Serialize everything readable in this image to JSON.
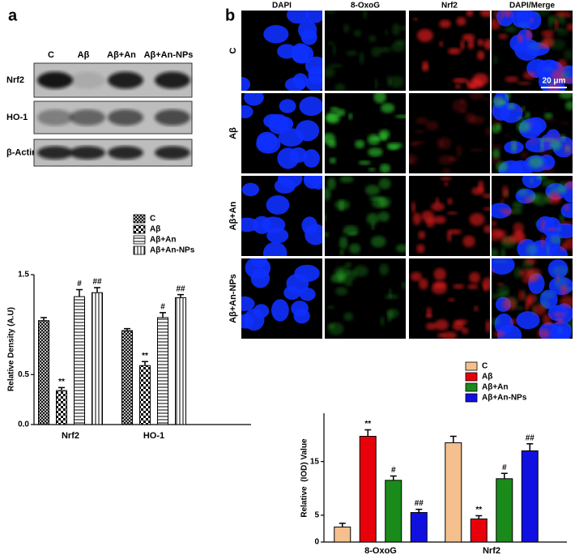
{
  "panel_labels": [
    "a",
    "b"
  ],
  "blot": {
    "lanes": [
      "C",
      "Aβ",
      "Aβ+An",
      "Aβ+An-NPs"
    ],
    "rows": [
      "Nrf2",
      "HO-1",
      "β-Actin"
    ]
  },
  "microscopy": {
    "columns": [
      "DAPI",
      "8-OxoG",
      "Nrf2",
      "DAPI/Merge"
    ],
    "rows": [
      "C",
      "Aβ",
      "Aβ+An",
      "Aβ+An-NPs"
    ],
    "scale_bar": "20 μm"
  },
  "chart_data": [
    {
      "type": "bar",
      "ylabel": "Relative Density (A.U)",
      "categories": [
        "Nrf2",
        "HO-1"
      ],
      "ylim": [
        0,
        1.5
      ],
      "yticks": [
        {
          "value": 0,
          "label": "0.0"
        },
        0.5,
        1.5
      ],
      "series": [
        {
          "name": "C",
          "pattern": "crosshatch",
          "values": [
            1.04,
            0.94
          ],
          "errors": [
            0.03,
            0.02
          ]
        },
        {
          "name": "Aβ",
          "pattern": "checker",
          "values": [
            0.34,
            0.59
          ],
          "errors": [
            0.03,
            0.04
          ],
          "annotations": [
            "**",
            "**"
          ]
        },
        {
          "name": "Aβ+An",
          "pattern": "horizontal",
          "values": [
            1.28,
            1.07
          ],
          "errors": [
            0.07,
            0.05
          ],
          "annotations": [
            "#",
            "#"
          ]
        },
        {
          "name": "Aβ+An-NPs",
          "pattern": "vertical",
          "values": [
            1.32,
            1.27
          ],
          "errors": [
            0.05,
            0.03
          ],
          "annotations": [
            "##",
            "##"
          ]
        }
      ]
    },
    {
      "type": "bar",
      "ylabel": "Relative  (IOD) Value",
      "categories": [
        "8-OxoG",
        "Nrf2"
      ],
      "ylim": [
        0,
        24
      ],
      "yticks": [
        0,
        5,
        15
      ],
      "series": [
        {
          "name": "C",
          "color": "#f4c08e",
          "values": [
            2.8,
            18.5
          ],
          "errors": [
            0.7,
            1.2
          ]
        },
        {
          "name": "Aβ",
          "color": "#e8000b",
          "values": [
            19.7,
            4.3
          ],
          "errors": [
            1.2,
            0.6
          ],
          "annotations": [
            "**",
            "**"
          ]
        },
        {
          "name": "Aβ+An",
          "color": "#1a8a1a",
          "values": [
            11.5,
            11.8
          ],
          "errors": [
            0.8,
            1.0
          ],
          "annotations": [
            "#",
            "#"
          ]
        },
        {
          "name": "Aβ+An-NPs",
          "color": "#1010e0",
          "values": [
            5.5,
            17.0
          ],
          "errors": [
            0.6,
            1.3
          ],
          "annotations": [
            "##",
            "##"
          ]
        }
      ]
    }
  ]
}
